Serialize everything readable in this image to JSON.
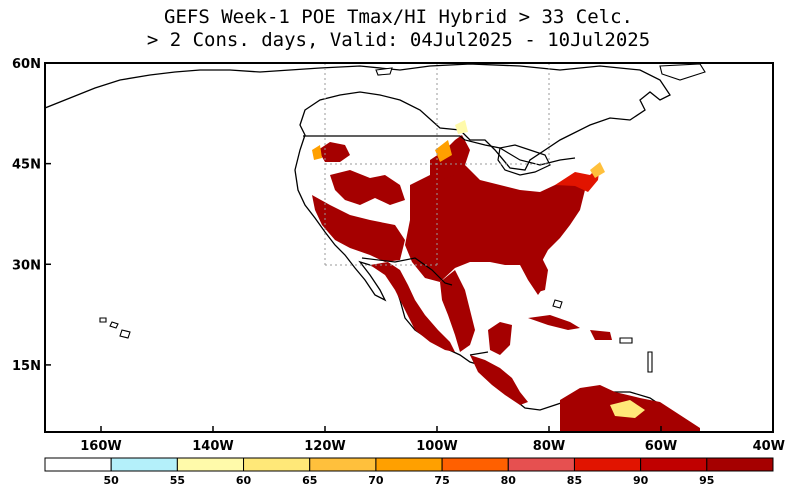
{
  "title": {
    "line1": "GEFS Week-1 POE Tmax/HI Hybrid > 33 Celc.",
    "line2": "> 2 Cons. days, Valid: 04Jul2025 - 10Jul2025"
  },
  "map": {
    "lon_range": [
      -170,
      -40
    ],
    "lat_range": [
      5,
      60
    ],
    "lat_ticks": [
      {
        "value": 60,
        "label": "60N"
      },
      {
        "value": 45,
        "label": "45N"
      },
      {
        "value": 30,
        "label": "30N"
      },
      {
        "value": 15,
        "label": "15N"
      }
    ],
    "lon_ticks": [
      {
        "value": -160,
        "label": "160W"
      },
      {
        "value": -140,
        "label": "140W"
      },
      {
        "value": -120,
        "label": "120W"
      },
      {
        "value": -100,
        "label": "100W"
      },
      {
        "value": -80,
        "label": "80W"
      },
      {
        "value": -60,
        "label": "60W"
      },
      {
        "value": -40,
        "label": "40W"
      }
    ]
  },
  "colorbar": {
    "colors": [
      "#ffffff",
      "#b4f0fa",
      "#fffaaa",
      "#ffe878",
      "#ffc03c",
      "#ffa000",
      "#ff6000",
      "#e65050",
      "#e11400",
      "#c00000",
      "#a50000"
    ],
    "labels": [
      "50",
      "55",
      "60",
      "65",
      "70",
      "75",
      "80",
      "85",
      "90",
      "95"
    ]
  },
  "colors": {
    "very_high": "#a50000",
    "high": "#e11400",
    "medium": "#ffa000",
    "low": "#fffaaa"
  }
}
